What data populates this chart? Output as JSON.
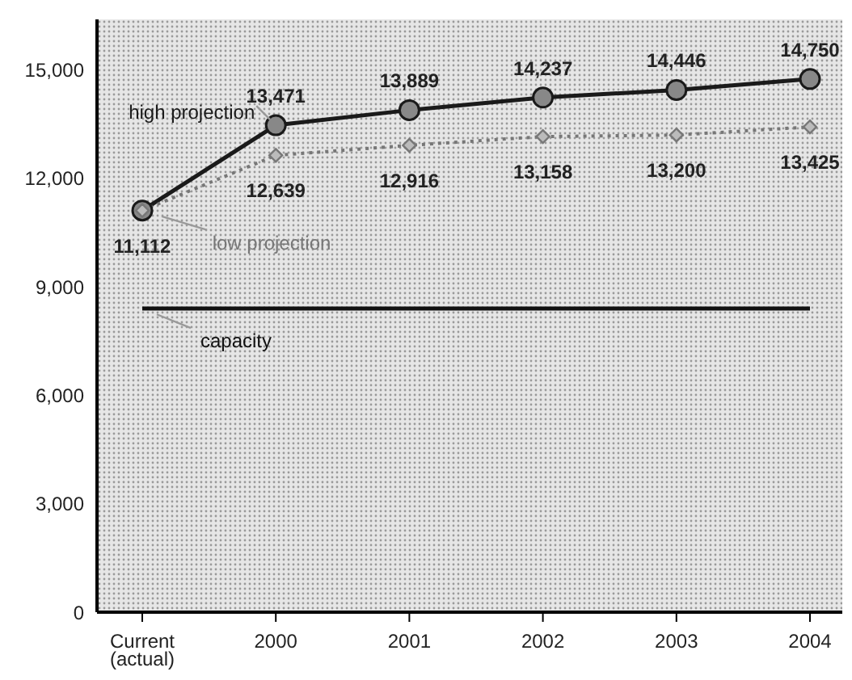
{
  "chart_data": {
    "type": "line",
    "categories": [
      "Current (actual)",
      "2000",
      "2001",
      "2002",
      "2003",
      "2004"
    ],
    "series": [
      {
        "name": "high projection",
        "color": "#1a1a1a",
        "marker": "circle",
        "line_style": "solid",
        "values": [
          11112,
          13471,
          13889,
          14237,
          14446,
          14750
        ],
        "value_labels": [
          null,
          "13,471",
          "13,889",
          "14,237",
          "14,446",
          "14,750"
        ]
      },
      {
        "name": "low projection",
        "color": "#777777",
        "marker": "diamond",
        "line_style": "dotted",
        "values": [
          11112,
          12639,
          12916,
          13158,
          13200,
          13425
        ],
        "value_labels": [
          "11,112",
          "12,639",
          "12,916",
          "13,158",
          "13,200",
          "13,425"
        ]
      },
      {
        "name": "capacity",
        "color": "#111111",
        "marker": "none",
        "line_style": "solid",
        "values": [
          8400,
          8400,
          8400,
          8400,
          8400,
          8400
        ]
      }
    ],
    "ylim": [
      0,
      16400
    ],
    "yticks": [
      {
        "value": 0,
        "label": "0"
      },
      {
        "value": 3000,
        "label": "3,000"
      },
      {
        "value": 6000,
        "label": "6,000"
      },
      {
        "value": 9000,
        "label": "9,000"
      },
      {
        "value": 12000,
        "label": "12,000"
      },
      {
        "value": 15000,
        "label": "15,000"
      }
    ],
    "grid": false,
    "legend": false
  }
}
